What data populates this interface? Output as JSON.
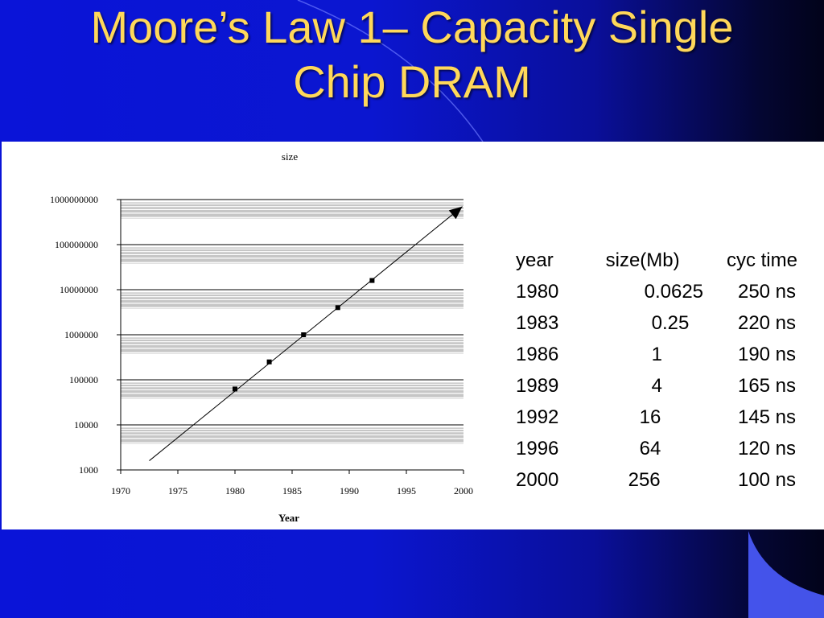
{
  "slide": {
    "title_line1": "Moore’s Law 1– Capacity Single",
    "title_line2": "Chip DRAM",
    "title_color": "#ffd85a",
    "background_color": "#0a14d8"
  },
  "chart_data": {
    "type": "scatter",
    "title": "size",
    "xlabel": "Year",
    "ylabel": "",
    "xlim": [
      1970,
      2000
    ],
    "ylim": [
      1000,
      1000000000
    ],
    "yscale": "log",
    "x_ticks": [
      "1970",
      "1975",
      "1980",
      "1985",
      "1990",
      "1995",
      "2000"
    ],
    "y_ticks": [
      "1000000000",
      "100000000",
      "10000000",
      "1000000",
      "100000",
      "10000",
      "1000"
    ],
    "grid": true,
    "series": [
      {
        "x": [
          1980,
          1983,
          1986,
          1989,
          1992
        ],
        "y": [
          62500,
          250000,
          1000000,
          4000000,
          16000000
        ]
      }
    ],
    "trend_line": {
      "x": [
        1972.5,
        1999.9
      ],
      "y": [
        1600,
        700000000
      ],
      "arrow": true
    }
  },
  "table": {
    "headers": [
      "year",
      "size(Mb)",
      "cyc time"
    ],
    "rows": [
      [
        "1980",
        "0.0625",
        "250 ns"
      ],
      [
        "1983",
        "0.25",
        "220 ns"
      ],
      [
        "1986",
        "1",
        "190 ns"
      ],
      [
        "1989",
        "4",
        "165 ns"
      ],
      [
        "1992",
        "16",
        "145 ns"
      ],
      [
        "1996",
        "64",
        "120 ns"
      ],
      [
        "2000",
        "256",
        "100 ns"
      ]
    ]
  }
}
